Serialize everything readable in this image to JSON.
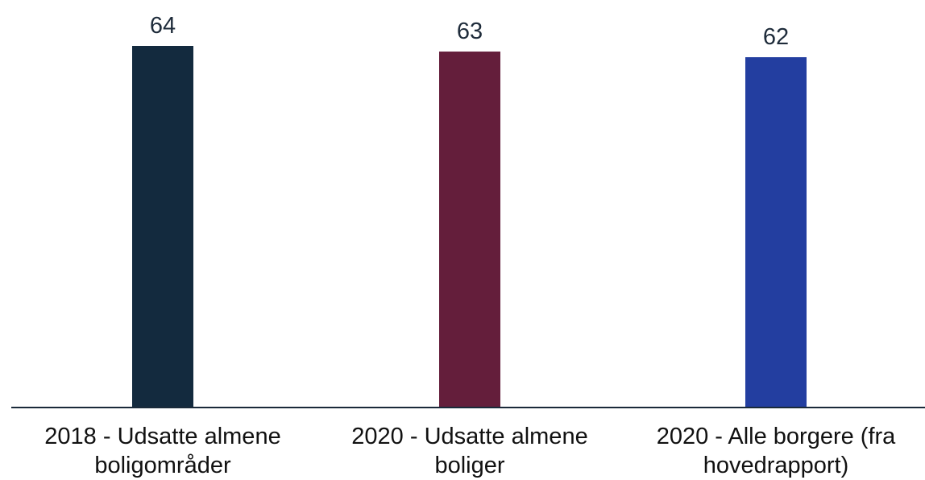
{
  "chart_data": {
    "type": "bar",
    "title": "",
    "xlabel": "",
    "ylabel": "",
    "categories": [
      "2018 - Udsatte almene boligområder",
      "2020 - Udsatte almene boliger",
      "2020 - Alle borgere (fra hovedrapport)"
    ],
    "values": [
      64,
      63,
      62
    ],
    "data_labels": [
      "64",
      "63",
      "62"
    ],
    "colors": [
      "#132a3e",
      "#641e3b",
      "#233ea0"
    ],
    "ylim": [
      0,
      64
    ],
    "grid": false,
    "legend": "none"
  }
}
